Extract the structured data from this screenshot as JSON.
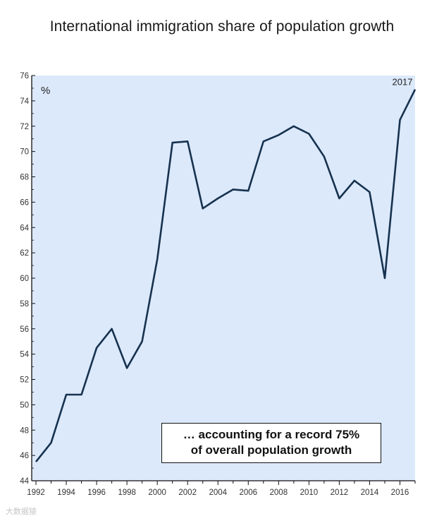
{
  "chart_data": {
    "type": "line",
    "title": "International immigration share of population growth",
    "y_unit_label": "%",
    "end_label": "2017",
    "annotation_line1": "… accounting for a record 75%",
    "annotation_line2": "of overall population growth",
    "xlim": [
      1992,
      2017
    ],
    "ylim": [
      44,
      76
    ],
    "x_ticks": [
      1992,
      1994,
      1996,
      1998,
      2000,
      2002,
      2004,
      2006,
      2008,
      2010,
      2012,
      2014,
      2016
    ],
    "y_ticks": [
      44,
      46,
      48,
      50,
      52,
      54,
      56,
      58,
      60,
      62,
      64,
      66,
      68,
      70,
      72,
      74,
      76
    ],
    "grid": false,
    "colors": {
      "line": "#16324f",
      "plot_background": "#dce9fb",
      "axis": "#111111"
    },
    "series": [
      {
        "x": [
          1992,
          1993,
          1994,
          1995,
          1996,
          1997,
          1998,
          1999,
          2000,
          2001,
          2002,
          2003,
          2004,
          2005,
          2006,
          2007,
          2008,
          2009,
          2010,
          2011,
          2012,
          2013,
          2014,
          2015,
          2016,
          2017
        ],
        "values": [
          45.5,
          47.0,
          50.8,
          50.8,
          54.5,
          56.0,
          52.9,
          55.0,
          61.5,
          70.7,
          70.8,
          65.5,
          66.3,
          67.0,
          66.9,
          70.8,
          71.3,
          72.0,
          71.4,
          69.6,
          66.3,
          67.7,
          66.8,
          60.0,
          72.5,
          74.9
        ]
      }
    ]
  },
  "watermark": "大数据猿"
}
